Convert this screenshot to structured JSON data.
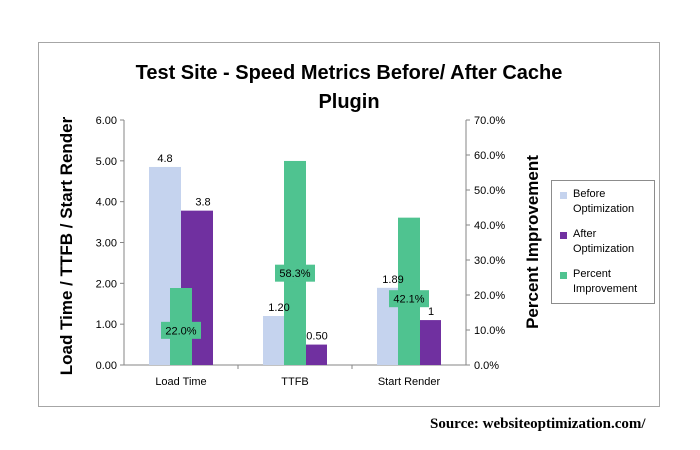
{
  "source_note": "Source:  websiteoptimization.com/",
  "colors": {
    "before": "#c5d3ee",
    "after": "#7030a0",
    "percent": "#4fc390",
    "axis": "#868686",
    "label_bg": "#4fc390"
  },
  "chart_data": {
    "type": "bar",
    "title": "Test Site - Speed Metrics Before/ After Cache Plugin",
    "title_lines": [
      "Test Site - Speed Metrics Before/ After Cache",
      "Plugin"
    ],
    "categories": [
      "Load Time",
      "TTFB",
      "Start Render"
    ],
    "ylabel": "Load Time / TTFB / Start Render",
    "y2label": "Percent Improvement",
    "ylim": [
      0,
      6
    ],
    "y2lim": [
      0,
      0.7
    ],
    "yticks": [
      "0.00",
      "1.00",
      "2.00",
      "3.00",
      "4.00",
      "5.00",
      "6.00"
    ],
    "y2ticks": [
      "0.0%",
      "10.0%",
      "20.0%",
      "30.0%",
      "40.0%",
      "50.0%",
      "60.0%",
      "70.0%"
    ],
    "legend_position": "right",
    "gridlines": false,
    "series": [
      {
        "name": "Before Optimization",
        "name_lines": [
          "Before",
          "Optimization"
        ],
        "axis": "left",
        "values": [
          4.85,
          1.2,
          1.89
        ],
        "labels": [
          "4.8",
          "1.20",
          "1.89"
        ]
      },
      {
        "name": "After Optimization",
        "name_lines": [
          "After",
          "Optimization"
        ],
        "axis": "left",
        "values": [
          3.78,
          0.5,
          1.1
        ],
        "labels": [
          "3.8",
          "0.50",
          "1"
        ]
      },
      {
        "name": "Percent Improvement",
        "name_lines": [
          "Percent",
          "Improvement"
        ],
        "axis": "right",
        "values": [
          0.22,
          0.583,
          0.421
        ],
        "labels": [
          "22.0%",
          "58.3%",
          "42.1%"
        ]
      }
    ]
  }
}
